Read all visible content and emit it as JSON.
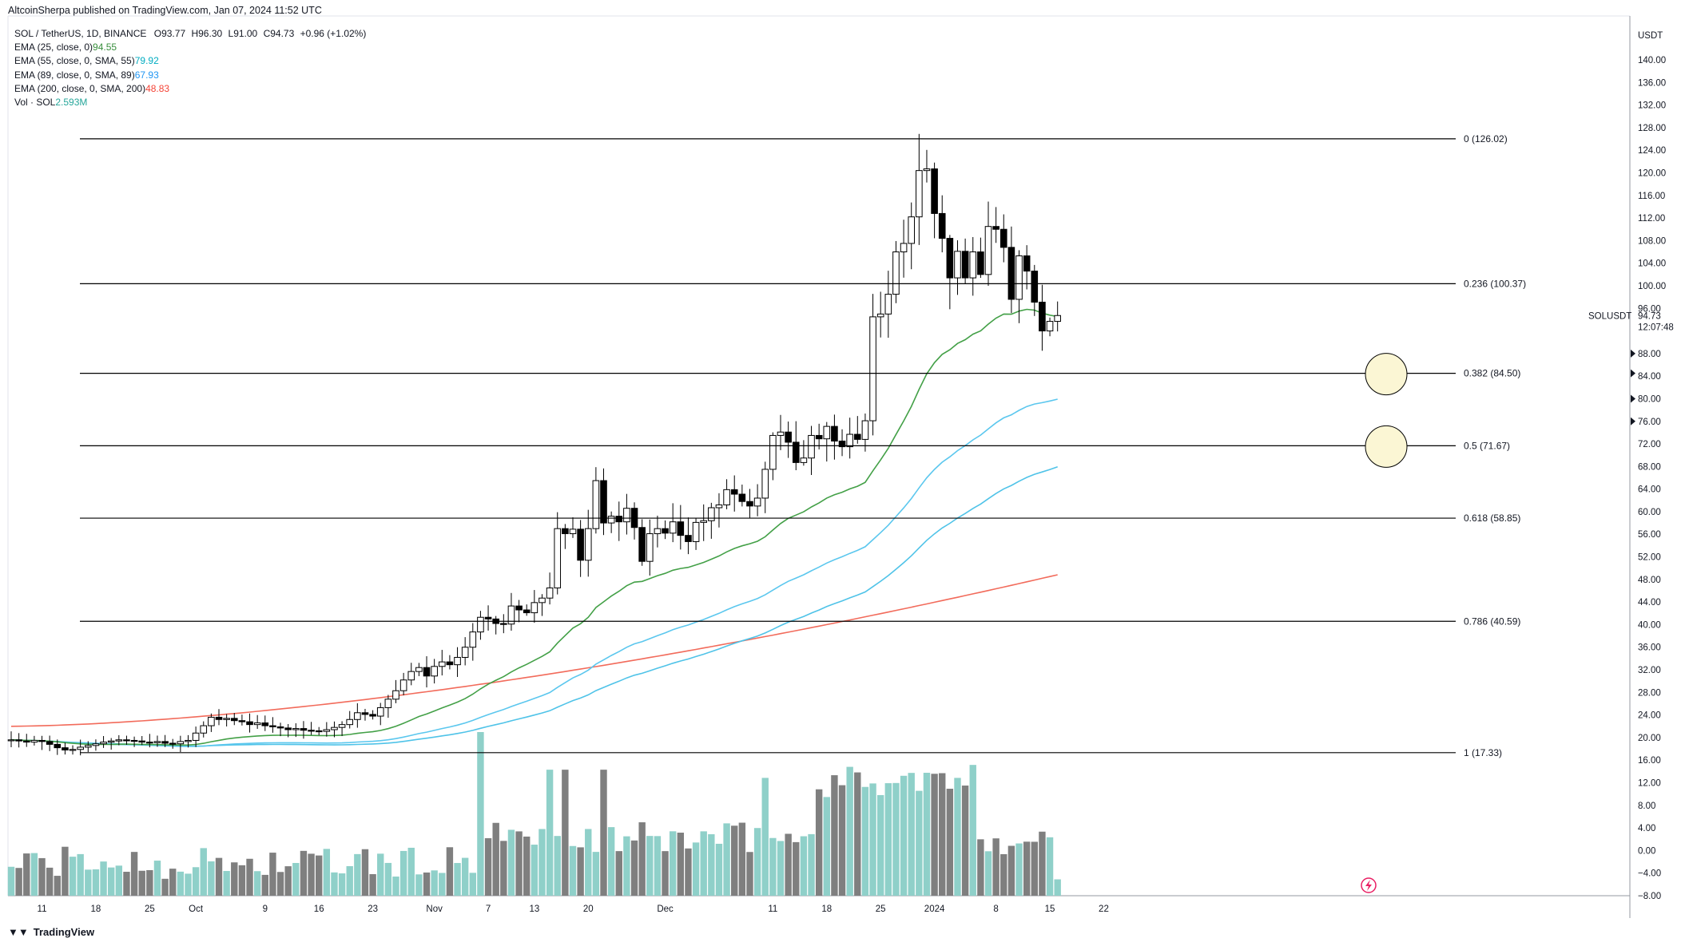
{
  "header": {
    "publisher": "AltcoinSherpa published on TradingView.com, Jan 07, 2024 11:52 UTC"
  },
  "legend": {
    "symbol_line": "SOL / TetherUS, 1D, BINANCE",
    "ohlc": {
      "o": "O93.77",
      "h": "H96.30",
      "l": "L91.00",
      "c": "C94.73",
      "chg": "+0.96 (+1.02%)"
    },
    "indicators": [
      {
        "label": "EMA (25, close, 0)",
        "value": "94.55",
        "color": "#388e3c"
      },
      {
        "label": "EMA (55, close, 0, SMA, 55)",
        "value": "79.92",
        "color": "#00acc1"
      },
      {
        "label": "EMA (89, close, 0, SMA, 89)",
        "value": "67.93",
        "color": "#2196f3"
      },
      {
        "label": "EMA (200, close, 0, SMA, 200)",
        "value": "48.83",
        "color": "#f44336"
      },
      {
        "label": "Vol · SOL",
        "value": "2.593M",
        "color": "#26a69a"
      }
    ]
  },
  "price_axis": {
    "currency": "USDT",
    "ticks": [
      "140.00",
      "136.00",
      "132.00",
      "128.00",
      "124.00",
      "120.00",
      "116.00",
      "112.00",
      "108.00",
      "104.00",
      "100.00",
      "96.00",
      "88.00",
      "84.00",
      "80.00",
      "76.00",
      "72.00",
      "68.00",
      "64.00",
      "60.00",
      "56.00",
      "52.00",
      "48.00",
      "44.00",
      "40.00",
      "36.00",
      "32.00",
      "28.00",
      "24.00",
      "20.00",
      "16.00",
      "12.00",
      "8.00",
      "4.00",
      "0.00",
      "−4.00",
      "−8.00"
    ],
    "ticker_label": "SOLUSDT",
    "last_price": "94.73",
    "countdown": "12:07:48"
  },
  "time_axis": {
    "labels": [
      "11",
      "18",
      "25",
      "Oct",
      "9",
      "16",
      "23",
      "Nov",
      "7",
      "13",
      "20",
      "Dec",
      "11",
      "18",
      "25",
      "2024",
      "8",
      "15",
      "22"
    ]
  },
  "brand": "TradingView",
  "colors": {
    "up": "#ffffff",
    "down": "#000000",
    "vol_up": "#8fd0c9",
    "vol_down": "#7f7f7f",
    "fib_line": "#000000",
    "circle_fill": "#fbf6d4"
  },
  "chart_data": {
    "type": "candlestick",
    "title": "SOL / TetherUS, 1D, BINANCE",
    "x_start": "2023-09-07",
    "x_end": "2024-01-07",
    "ylim": [
      -8,
      140
    ],
    "fib_levels": [
      {
        "label": "0 (126.02)",
        "value": 126.02
      },
      {
        "label": "0.236 (100.37)",
        "value": 100.37
      },
      {
        "label": "0.382 (84.50)",
        "value": 84.5
      },
      {
        "label": "0.5 (71.67)",
        "value": 71.67
      },
      {
        "label": "0.618 (58.85)",
        "value": 58.85
      },
      {
        "label": "0.786 (40.59)",
        "value": 40.59
      },
      {
        "label": "1 (17.33)",
        "value": 17.33
      }
    ],
    "highlight_circles": [
      84.5,
      71.67
    ],
    "closes": [
      19.6,
      19.4,
      19.2,
      19.5,
      19.3,
      18.8,
      18.2,
      17.8,
      17.9,
      18.3,
      18.6,
      18.9,
      19.2,
      19.4,
      19.6,
      19.5,
      19.4,
      19.2,
      19.1,
      19.3,
      19.0,
      18.9,
      19.3,
      19.5,
      20.8,
      22.1,
      23.6,
      23.2,
      23.4,
      23.0,
      22.8,
      22.3,
      22.6,
      22.1,
      21.9,
      21.7,
      21.4,
      21.6,
      21.3,
      21.2,
      21.1,
      21.4,
      21.8,
      22.3,
      23.2,
      24.4,
      24.1,
      23.8,
      25.3,
      26.8,
      28.3,
      30.2,
      31.7,
      32.4,
      30.9,
      32.6,
      33.4,
      32.9,
      34.2,
      36.0,
      38.7,
      41.3,
      41.0,
      40.2,
      40.1,
      43.3,
      42.6,
      42.1,
      43.9,
      44.7,
      46.5,
      57.0,
      56.1,
      56.9,
      51.4,
      57.0,
      65.5,
      58.0,
      59.2,
      58.2,
      60.6,
      57.2,
      51.2,
      56.1,
      57.0,
      56.2,
      58.2,
      55.8,
      54.7,
      58.1,
      58.4,
      60.7,
      61.2,
      63.9,
      63.1,
      61.8,
      61.0,
      62.4,
      67.5,
      73.5,
      74.1,
      72.3,
      68.7,
      69.5,
      73.5,
      72.9,
      75.1,
      72.5,
      71.5,
      73.7,
      72.8,
      76.1,
      94.5,
      95.0,
      98.5,
      106.0,
      107.5,
      112.2,
      120.4,
      120.7,
      112.8,
      108.4,
      101.4,
      106.1,
      101.4,
      106.0,
      102.0,
      110.5,
      110.0,
      106.8,
      97.6,
      105.3,
      102.6,
      97.1,
      92.0,
      93.7,
      94.73
    ],
    "ema25_end": 94.55,
    "ema55_end": 79.92,
    "ema89_end": 67.93,
    "ema200_end": 48.83,
    "volume_last": "2.593M"
  }
}
